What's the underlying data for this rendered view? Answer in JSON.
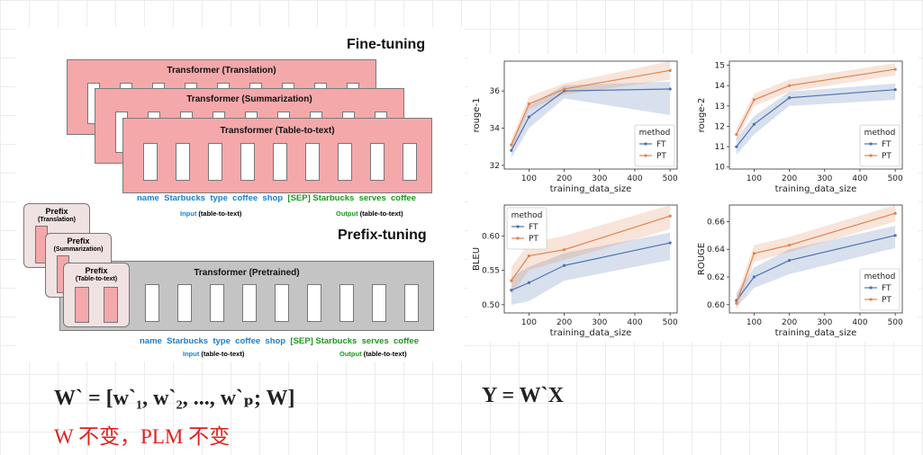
{
  "diagram": {
    "finetuning_title": "Fine-tuning",
    "prefixtuning_title": "Prefix-tuning",
    "transformers_ft": [
      "Transformer (Translation)",
      "Transformer (Summarization)",
      "Transformer (Table-to-text)"
    ],
    "transformer_pt": "Transformer  (Pretrained)",
    "prefixes": [
      {
        "title": "Prefix",
        "task": "(Translation)"
      },
      {
        "title": "Prefix",
        "task": "(Summarization)"
      },
      {
        "title": "Prefix",
        "task": "(Table-to-text)"
      }
    ],
    "input_tokens": [
      "name",
      "Starbucks",
      "type",
      "coffee",
      "shop"
    ],
    "output_tokens": [
      "[SEP]",
      "Starbucks",
      "serves",
      "coffee"
    ],
    "input_label": "Input",
    "output_label": "Output",
    "task_label": "(table-to-text)"
  },
  "formulas": {
    "left": "W` = [w`₁, w`₂, ..., w`ₚ; W]",
    "right": "Y = W`X",
    "note": "W 不变，PLM 不变"
  },
  "colors": {
    "ft": "#4c72b0",
    "pt": "#dd8452",
    "note": "#e0201a"
  },
  "chart_data": [
    {
      "type": "line",
      "ylabel": "rouge-1",
      "xlabel": "training_data_size",
      "x": [
        50,
        100,
        200,
        500
      ],
      "xticks": [
        100,
        200,
        300,
        400,
        500
      ],
      "yticks": [
        32,
        34,
        36
      ],
      "ylim": [
        31.8,
        37.6
      ],
      "xlim": [
        30,
        520
      ],
      "legend_title": "method",
      "legend_position": "lower-right",
      "series": [
        {
          "name": "FT",
          "values": [
            32.8,
            34.6,
            36.0,
            36.1
          ],
          "lower": [
            32.4,
            34.0,
            35.6,
            34.7
          ],
          "upper": [
            33.2,
            35.2,
            36.3,
            36.5
          ]
        },
        {
          "name": "PT",
          "values": [
            33.1,
            35.3,
            36.1,
            37.1
          ],
          "lower": [
            32.8,
            35.0,
            35.8,
            36.6
          ],
          "upper": [
            33.4,
            35.7,
            36.4,
            37.6
          ]
        }
      ]
    },
    {
      "type": "line",
      "ylabel": "rouge-2",
      "xlabel": "training_data_size",
      "x": [
        50,
        100,
        200,
        500
      ],
      "xticks": [
        100,
        200,
        300,
        400,
        500
      ],
      "yticks": [
        10,
        11,
        12,
        13,
        14,
        15
      ],
      "ylim": [
        9.9,
        15.2
      ],
      "xlim": [
        30,
        520
      ],
      "legend_title": "method",
      "legend_position": "lower-right",
      "series": [
        {
          "name": "FT",
          "values": [
            11.0,
            12.1,
            13.4,
            13.8
          ],
          "lower": [
            10.6,
            11.6,
            13.0,
            13.3
          ],
          "upper": [
            11.4,
            12.5,
            13.7,
            14.1
          ]
        },
        {
          "name": "PT",
          "values": [
            11.6,
            13.3,
            14.0,
            14.8
          ],
          "lower": [
            11.3,
            13.0,
            13.7,
            14.5
          ],
          "upper": [
            11.9,
            13.6,
            14.3,
            15.1
          ]
        }
      ]
    },
    {
      "type": "line",
      "ylabel": "BLEU",
      "xlabel": "training_data_size",
      "x": [
        50,
        100,
        200,
        500
      ],
      "xticks": [
        100,
        200,
        300,
        400,
        500
      ],
      "yticks": [
        0.5,
        0.55,
        0.6
      ],
      "ylim": [
        0.488,
        0.645
      ],
      "xlim": [
        30,
        520
      ],
      "legend_title": "method",
      "legend_position": "upper-left",
      "series": [
        {
          "name": "FT",
          "values": [
            0.521,
            0.532,
            0.557,
            0.59
          ],
          "lower": [
            0.5,
            0.505,
            0.535,
            0.565
          ],
          "upper": [
            0.54,
            0.555,
            0.575,
            0.605
          ]
        },
        {
          "name": "PT",
          "values": [
            0.535,
            0.571,
            0.58,
            0.629
          ],
          "lower": [
            0.515,
            0.55,
            0.565,
            0.61
          ],
          "upper": [
            0.555,
            0.59,
            0.6,
            0.645
          ]
        }
      ]
    },
    {
      "type": "line",
      "ylabel": "ROUGE",
      "xlabel": "training_data_size",
      "x": [
        50,
        100,
        200,
        500
      ],
      "xticks": [
        100,
        200,
        300,
        400,
        500
      ],
      "yticks": [
        0.6,
        0.62,
        0.64,
        0.66
      ],
      "ylim": [
        0.594,
        0.672
      ],
      "xlim": [
        30,
        520
      ],
      "legend_title": "method",
      "legend_position": "lower-right",
      "series": [
        {
          "name": "FT",
          "values": [
            0.603,
            0.62,
            0.632,
            0.65
          ],
          "lower": [
            0.598,
            0.612,
            0.622,
            0.641
          ],
          "upper": [
            0.608,
            0.627,
            0.64,
            0.657
          ]
        },
        {
          "name": "PT",
          "values": [
            0.601,
            0.637,
            0.643,
            0.666
          ],
          "lower": [
            0.596,
            0.631,
            0.638,
            0.66
          ],
          "upper": [
            0.606,
            0.643,
            0.649,
            0.672
          ]
        }
      ]
    }
  ]
}
